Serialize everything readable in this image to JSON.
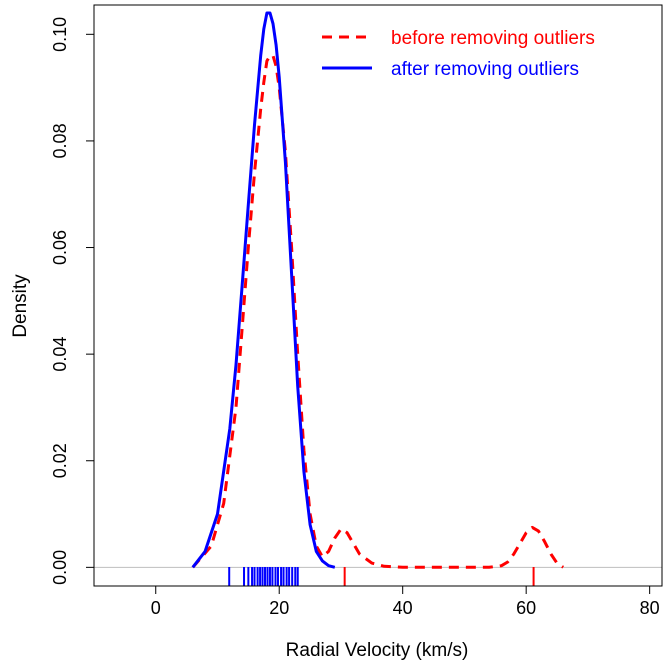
{
  "chart_data": {
    "type": "line",
    "title": "",
    "xlabel": "Radial Velocity (km/s)",
    "ylabel": "Density",
    "xlim": [
      -10,
      82
    ],
    "ylim": [
      -0.0035,
      0.1055
    ],
    "x_ticks": [
      0,
      20,
      40,
      60,
      80
    ],
    "y_ticks": [
      0.0,
      0.02,
      0.04,
      0.06,
      0.08,
      0.1
    ],
    "x_tick_labels": [
      "0",
      "20",
      "40",
      "60",
      "80"
    ],
    "y_tick_labels": [
      "0.00",
      "0.02",
      "0.04",
      "0.06",
      "0.08",
      "0.10"
    ],
    "grid": false,
    "zero_line": true,
    "legend_position": "top-right",
    "series": [
      {
        "name": "before removing outliers",
        "color": "#ff0000",
        "style": "dashed",
        "x": [
          6.0,
          9.0,
          11.0,
          13.0,
          14.0,
          15.0,
          16.0,
          17.0,
          17.5,
          18.0,
          18.5,
          19.0,
          19.5,
          20.0,
          21.0,
          22.0,
          23.0,
          24.0,
          25.0,
          26.0,
          27.0,
          28.0,
          29.0,
          30.0,
          31.0,
          32.0,
          33.0,
          35.0,
          37.0,
          40.0,
          45.0,
          50.0,
          54.0,
          56.0,
          57.0,
          58.0,
          59.0,
          60.0,
          61.0,
          62.0,
          63.0,
          64.0,
          65.0,
          66.0
        ],
        "y": [
          0.0,
          0.004,
          0.012,
          0.03,
          0.045,
          0.06,
          0.074,
          0.086,
          0.091,
          0.095,
          0.096,
          0.096,
          0.094,
          0.09,
          0.078,
          0.06,
          0.04,
          0.022,
          0.01,
          0.004,
          0.002,
          0.003,
          0.0055,
          0.0072,
          0.0065,
          0.0045,
          0.0025,
          0.0008,
          0.0002,
          0.0,
          0.0,
          0.0,
          0.0,
          0.0003,
          0.001,
          0.0025,
          0.0045,
          0.0065,
          0.0075,
          0.0068,
          0.0048,
          0.0025,
          0.0008,
          0.0
        ]
      },
      {
        "name": "after removing outliers",
        "color": "#0000ff",
        "style": "solid",
        "x": [
          6.0,
          8.0,
          10.0,
          12.0,
          13.0,
          14.0,
          15.0,
          16.0,
          17.0,
          17.5,
          18.0,
          18.5,
          19.0,
          19.5,
          20.0,
          21.0,
          22.0,
          23.0,
          24.0,
          25.0,
          26.0,
          27.0,
          28.0,
          29.0
        ],
        "y": [
          0.0,
          0.003,
          0.01,
          0.026,
          0.038,
          0.053,
          0.068,
          0.083,
          0.096,
          0.101,
          0.104,
          0.104,
          0.102,
          0.098,
          0.092,
          0.076,
          0.055,
          0.034,
          0.018,
          0.008,
          0.003,
          0.0012,
          0.0003,
          0.0
        ]
      }
    ],
    "rug": [
      {
        "name": "after removing outliers",
        "color": "#0000ff",
        "values": [
          11.9,
          14.3,
          15.0,
          15.6,
          16.0,
          16.5,
          16.9,
          17.3,
          17.7,
          18.1,
          18.5,
          18.9,
          19.4,
          19.8,
          20.3,
          20.7,
          21.2,
          21.6,
          22.1,
          22.6,
          23.0
        ]
      },
      {
        "name": "before removing outliers",
        "color": "#ff0000",
        "values": [
          30.6,
          61.2
        ]
      }
    ]
  }
}
